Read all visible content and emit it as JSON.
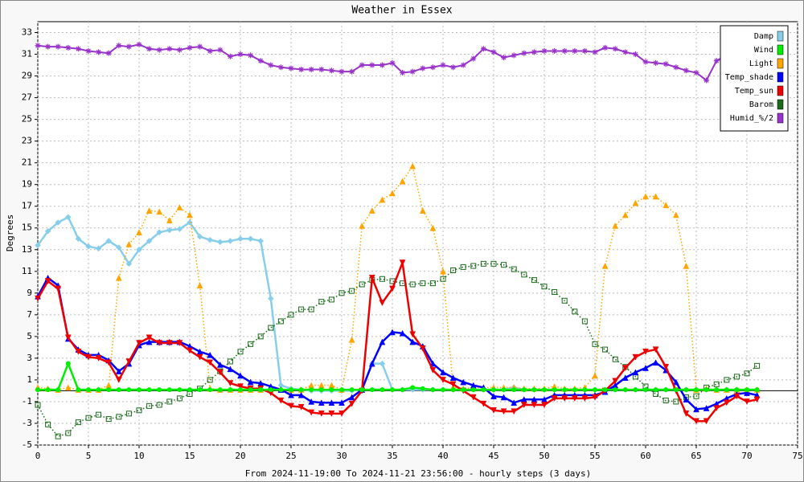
{
  "chart_data": {
    "type": "line",
    "title": "Weather in Essex",
    "ylabel": "Degrees",
    "xlabel": "From 2024-11-19:00 To 2024-11-21 23:56:00 - hourly steps (3 days)",
    "xlim": [
      0,
      75
    ],
    "xticks": [
      0,
      5,
      10,
      15,
      20,
      25,
      30,
      35,
      40,
      45,
      50,
      55,
      60,
      65,
      70,
      75
    ],
    "ylim": [
      -5,
      34
    ],
    "yticks": [
      -5,
      -3,
      -1,
      1,
      3,
      5,
      7,
      9,
      11,
      13,
      15,
      17,
      19,
      21,
      23,
      25,
      27,
      29,
      31,
      33
    ],
    "grid": true,
    "legend": "upper right",
    "x": [
      0,
      1,
      2,
      3,
      4,
      5,
      6,
      7,
      8,
      9,
      10,
      11,
      12,
      13,
      14,
      15,
      16,
      17,
      18,
      19,
      20,
      21,
      22,
      23,
      24,
      25,
      26,
      27,
      28,
      29,
      30,
      31,
      32,
      33,
      34,
      35,
      36,
      37,
      38,
      39,
      40,
      41,
      42,
      43,
      44,
      45,
      46,
      47,
      48,
      49,
      50,
      51,
      52,
      53,
      54,
      55,
      56,
      57,
      58,
      59,
      60,
      61,
      62,
      63,
      64,
      65,
      66,
      67,
      68,
      69,
      70,
      71
    ],
    "series": [
      {
        "name": "Damp",
        "color": "#87ceeb",
        "style": "solid",
        "width": 2.5,
        "marker": "diamond",
        "values": [
          13.4,
          14.7,
          15.5,
          16.0,
          14.0,
          13.3,
          13.1,
          13.8,
          13.2,
          11.7,
          13.0,
          13.8,
          14.6,
          14.8,
          14.9,
          15.5,
          14.2,
          13.9,
          13.7,
          13.8,
          14.0,
          14.0,
          13.8,
          8.5,
          0.5,
          0.2,
          0.1,
          0.0,
          0.0,
          0.0,
          0.0,
          0.0,
          0.1,
          2.5,
          2.5,
          0.1,
          0.1,
          0.1,
          0.1,
          0.1,
          0.1,
          0.1,
          0.1,
          0.1,
          0.1,
          0.1,
          0.1,
          0.3,
          0.1,
          0.1,
          0.1,
          0.1,
          0.1,
          0.1,
          0.1,
          0.1,
          0.1,
          0.1,
          0.1,
          0.1,
          0.1,
          0.1,
          0.1,
          0.1,
          0.1,
          0.1,
          0.1,
          0.1,
          0.1,
          0.1,
          0.1,
          0.1
        ]
      },
      {
        "name": "Light",
        "color": "#ffa500",
        "style": "dotted",
        "width": 1.5,
        "marker": "triangle-up",
        "values": [
          0.3,
          0.2,
          0.1,
          0.3,
          0.1,
          0.1,
          0.1,
          0.5,
          10.4,
          13.5,
          14.6,
          16.6,
          16.5,
          15.7,
          16.9,
          16.2,
          9.7,
          0.2,
          0.1,
          0.1,
          0.1,
          0.1,
          0.1,
          0.1,
          0.1,
          0.1,
          0.1,
          0.5,
          0.5,
          0.5,
          0.1,
          4.7,
          15.2,
          16.6,
          17.6,
          18.2,
          19.3,
          20.7,
          16.6,
          15.0,
          11.0,
          0.3,
          0.2,
          0.3,
          0.3,
          0.3,
          0.3,
          0.3,
          0.2,
          0.2,
          0.2,
          0.4,
          0.2,
          0.2,
          0.3,
          1.4,
          11.5,
          15.2,
          16.2,
          17.3,
          17.9,
          17.9,
          17.1,
          16.2,
          11.5,
          0.1,
          0.2,
          0.1,
          0.1,
          0.1,
          0.1,
          0.1
        ]
      },
      {
        "name": "Barom",
        "color": "#1a6b1a",
        "style": "dotted",
        "width": 1.5,
        "marker": "square",
        "values": [
          -1.3,
          -3.1,
          -4.2,
          -3.9,
          -2.9,
          -2.5,
          -2.2,
          -2.6,
          -2.4,
          -2.1,
          -1.8,
          -1.4,
          -1.3,
          -1.0,
          -0.7,
          -0.3,
          0.2,
          1.0,
          1.8,
          2.7,
          3.6,
          4.3,
          5.0,
          5.8,
          6.4,
          7.0,
          7.5,
          7.5,
          8.2,
          8.4,
          9.0,
          9.2,
          9.8,
          10.2,
          10.3,
          10.1,
          9.9,
          9.8,
          9.9,
          9.9,
          10.3,
          11.1,
          11.4,
          11.5,
          11.7,
          11.7,
          11.6,
          11.2,
          10.7,
          10.2,
          9.6,
          9.1,
          8.3,
          7.3,
          6.4,
          4.3,
          3.8,
          2.9,
          2.2,
          1.3,
          0.4,
          -0.3,
          -0.9,
          -1.0,
          -0.6,
          -0.5,
          0.3,
          0.6,
          1.0,
          1.3,
          1.6,
          2.3
        ]
      },
      {
        "name": "Humid_%/2",
        "color": "#9932cc",
        "style": "solid",
        "width": 2,
        "marker": "star",
        "values": [
          31.8,
          31.7,
          31.7,
          31.6,
          31.5,
          31.3,
          31.2,
          31.1,
          31.8,
          31.7,
          31.9,
          31.5,
          31.4,
          31.5,
          31.4,
          31.6,
          31.7,
          31.3,
          31.4,
          30.8,
          31.0,
          30.9,
          30.4,
          30.0,
          29.8,
          29.7,
          29.6,
          29.6,
          29.6,
          29.5,
          29.4,
          29.4,
          30.0,
          30.0,
          30.0,
          30.2,
          29.3,
          29.4,
          29.7,
          29.8,
          30.0,
          29.8,
          30.0,
          30.6,
          31.5,
          31.2,
          30.7,
          30.9,
          31.1,
          31.2,
          31.3,
          31.3,
          31.3,
          31.3,
          31.3,
          31.2,
          31.6,
          31.5,
          31.2,
          31.0,
          30.3,
          30.2,
          30.1,
          29.8,
          29.5,
          29.3,
          28.6,
          30.4,
          30.9,
          31.3,
          31.6,
          31.8
        ]
      },
      {
        "name": "Temp_shade",
        "color": "#0000ff",
        "style": "solid",
        "width": 2.5,
        "marker": "triangle-up",
        "values": [
          8.7,
          10.4,
          9.7,
          4.8,
          3.8,
          3.3,
          3.3,
          2.8,
          1.8,
          2.5,
          4.2,
          4.5,
          4.5,
          4.5,
          4.5,
          4.1,
          3.6,
          3.3,
          2.4,
          2.0,
          1.4,
          0.8,
          0.7,
          0.4,
          0.1,
          -0.4,
          -0.4,
          -1.0,
          -1.1,
          -1.1,
          -1.1,
          -0.6,
          0.1,
          2.5,
          4.5,
          5.4,
          5.3,
          4.5,
          4.1,
          2.5,
          1.7,
          1.2,
          0.8,
          0.5,
          0.3,
          -0.5,
          -0.6,
          -1.1,
          -0.8,
          -0.8,
          -0.8,
          -0.4,
          -0.4,
          -0.4,
          -0.4,
          -0.4,
          -0.1,
          0.5,
          1.2,
          1.7,
          2.1,
          2.6,
          1.9,
          0.8,
          -0.8,
          -1.7,
          -1.6,
          -1.2,
          -0.7,
          -0.3,
          -0.2,
          -0.4
        ]
      },
      {
        "name": "Temp_sun",
        "color": "#ee0000",
        "style": "solid",
        "width": 2.5,
        "marker": "triangle-down",
        "values": [
          8.5,
          10.1,
          9.4,
          4.9,
          3.6,
          3.1,
          3.0,
          2.6,
          1.0,
          2.7,
          4.4,
          4.9,
          4.4,
          4.4,
          4.4,
          3.7,
          3.1,
          2.6,
          1.7,
          0.7,
          0.4,
          0.2,
          0.2,
          -0.2,
          -0.9,
          -1.4,
          -1.5,
          -2.0,
          -2.1,
          -2.1,
          -2.1,
          -1.2,
          0.0,
          10.4,
          8.1,
          9.4,
          11.8,
          5.2,
          3.9,
          1.9,
          1.0,
          0.6,
          0.0,
          -0.6,
          -1.2,
          -1.8,
          -1.9,
          -1.9,
          -1.3,
          -1.3,
          -1.3,
          -0.7,
          -0.7,
          -0.7,
          -0.7,
          -0.6,
          0.0,
          0.9,
          2.1,
          3.1,
          3.6,
          3.8,
          2.2,
          0.0,
          -2.1,
          -2.8,
          -2.8,
          -1.6,
          -1.1,
          -0.5,
          -1.0,
          -0.8
        ]
      },
      {
        "name": "Wind",
        "color": "#00ee00",
        "style": "solid",
        "width": 2.5,
        "marker": "circle",
        "values": [
          0.1,
          0.1,
          0.1,
          2.5,
          0.1,
          0.1,
          0.1,
          0.1,
          0.1,
          0.1,
          0.1,
          0.1,
          0.1,
          0.1,
          0.1,
          0.1,
          0.1,
          0.1,
          0.1,
          0.1,
          0.1,
          0.1,
          0.1,
          0.1,
          0.1,
          0.1,
          0.1,
          0.1,
          0.1,
          0.1,
          0.1,
          0.1,
          0.1,
          0.1,
          0.1,
          0.1,
          0.1,
          0.3,
          0.2,
          0.1,
          0.1,
          0.1,
          0.1,
          0.1,
          0.1,
          0.1,
          0.1,
          0.1,
          0.1,
          0.1,
          0.1,
          0.1,
          0.1,
          0.1,
          0.1,
          0.1,
          0.1,
          0.1,
          0.1,
          0.1,
          0.1,
          0.1,
          0.1,
          0.1,
          0.1,
          0.1,
          0.1,
          0.1,
          0.1,
          0.1,
          0.1,
          0.1
        ]
      }
    ],
    "legend_order": [
      0,
      6,
      1,
      4,
      5,
      2,
      3
    ]
  }
}
